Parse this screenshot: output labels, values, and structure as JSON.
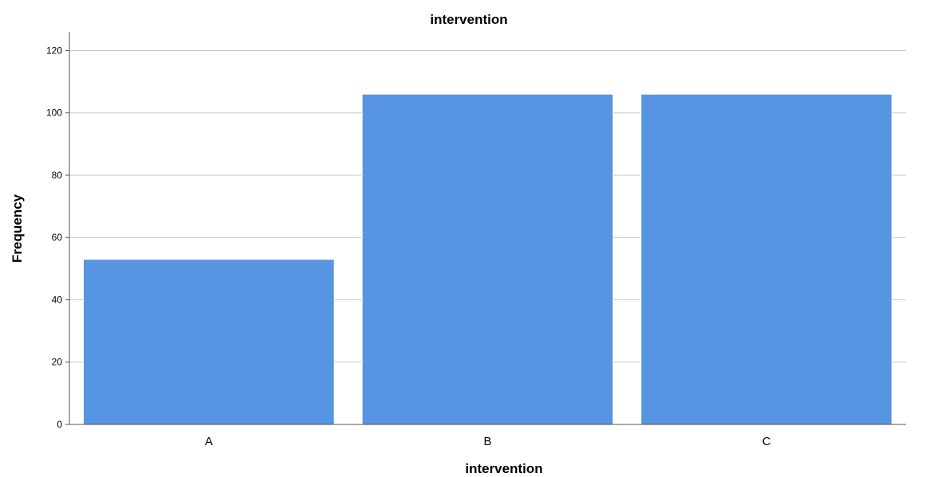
{
  "chart_data": {
    "type": "bar",
    "title": "intervention",
    "xlabel": "intervention",
    "ylabel": "Frequency",
    "categories": [
      "A",
      "B",
      "C"
    ],
    "values": [
      53,
      106,
      106
    ],
    "ylim": [
      0,
      126
    ],
    "yticks": [
      0,
      20,
      40,
      60,
      80,
      100,
      120
    ],
    "grid": true,
    "legend": "none",
    "colors": {
      "bar": "#5795e3",
      "bar_edge": "#ffffff",
      "grid": "#c8c8c8",
      "axis": "#555555"
    }
  }
}
